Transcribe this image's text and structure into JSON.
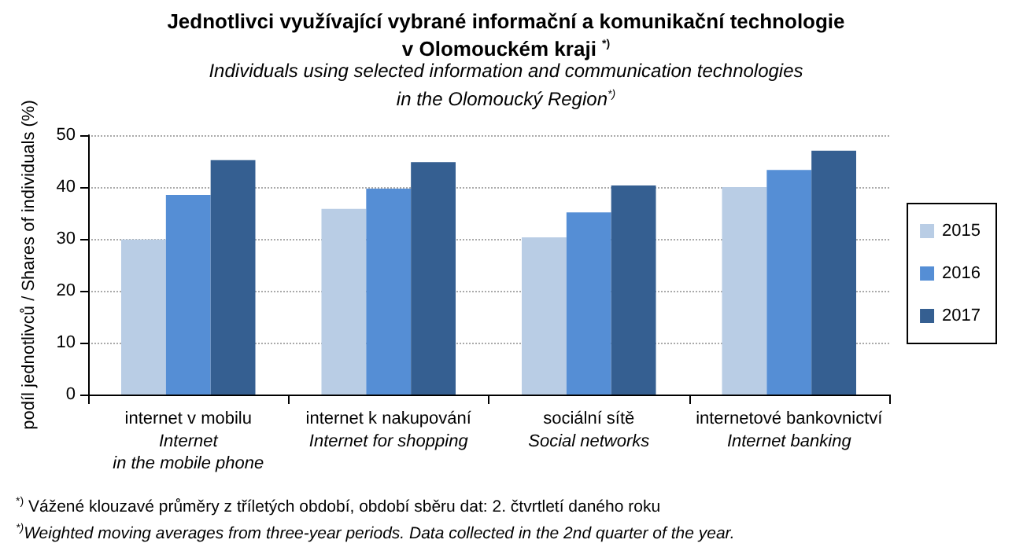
{
  "chart_data": {
    "type": "bar",
    "title": "Jednotlivci využívající vybrané informační a komunikační technologie\nv Olomouckém kraji $^{*)}$",
    "subtitle": "Individuals using selected information and communication technologies\nin the Olomoucký Region$^{*)}$",
    "ylabel": "podíl jednotlivců / Shares of individuals (%)",
    "categories": [
      "internet v mobilu\nInternet\nin the mobile phone",
      "internet k nakupování\nInternet for shopping",
      "sociální sítě\nSocial networks",
      "internetové bankovnictví\nInternet banking"
    ],
    "series": [
      {
        "name": "2015",
        "color": "#b9cde5",
        "values": [
          29.9,
          35.8,
          30.3,
          40.0
        ]
      },
      {
        "name": "2016",
        "color": "#558ed5",
        "values": [
          38.5,
          39.7,
          35.1,
          43.3
        ]
      },
      {
        "name": "2017",
        "color": "#355f91",
        "values": [
          45.2,
          44.8,
          40.3,
          47.0
        ]
      }
    ],
    "ylim": [
      0,
      50
    ],
    "yticks": [
      0,
      10,
      20,
      30,
      40,
      50
    ],
    "grid": "y",
    "legend": "right",
    "annotations": [
      "$^{*)}$ Vážené klouzavé průměry z tříletých období,  období sběru dat: 2. čtvrtletí daného roku",
      "$^{*)}$Weighted moving averages from three-year periods. Data collected in the 2nd quarter of the year."
    ]
  }
}
